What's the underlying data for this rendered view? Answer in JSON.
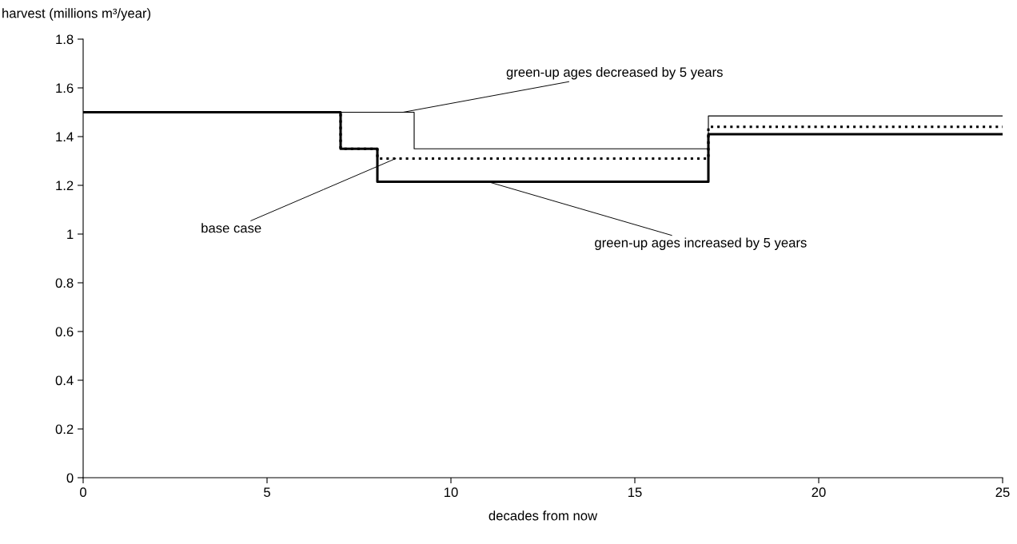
{
  "chart_data": {
    "type": "step",
    "xlabel": "decades from now",
    "ylabel": "harvest (millions m³/year)",
    "xlim": [
      0,
      25
    ],
    "ylim": [
      0,
      1.8
    ],
    "xticks": [
      0,
      5,
      10,
      15,
      20,
      25
    ],
    "yticks": [
      0,
      0.2,
      0.4,
      0.6,
      0.8,
      1,
      1.2,
      1.4,
      1.6,
      1.8
    ],
    "grid": false,
    "marker": "none",
    "series": [
      {
        "color": "#000000",
        "line_style": "solid",
        "x": [
          0,
          9,
          17,
          25
        ],
        "values": [
          1.5,
          1.35,
          1.485,
          1.485
        ]
      },
      {
        "color": "#000000",
        "line_style": "dotted",
        "x": [
          0,
          7,
          8,
          17,
          25
        ],
        "values": [
          1.5,
          1.35,
          1.31,
          1.44,
          1.44
        ]
      },
      {
        "color": "#000000",
        "line_style": "solid",
        "x": [
          0,
          7,
          8,
          17,
          25
        ],
        "values": [
          1.5,
          1.35,
          1.215,
          1.41,
          1.41
        ]
      }
    ],
    "annotations": [
      {
        "text": "green-up ages decreased by 5 years",
        "x": 8.7,
        "y": 1.5
      },
      {
        "text": "base case",
        "x": 8.5,
        "y": 1.31
      },
      {
        "text": "green-up ages increased by 5 years",
        "x": 11,
        "y": 1.215
      }
    ]
  }
}
